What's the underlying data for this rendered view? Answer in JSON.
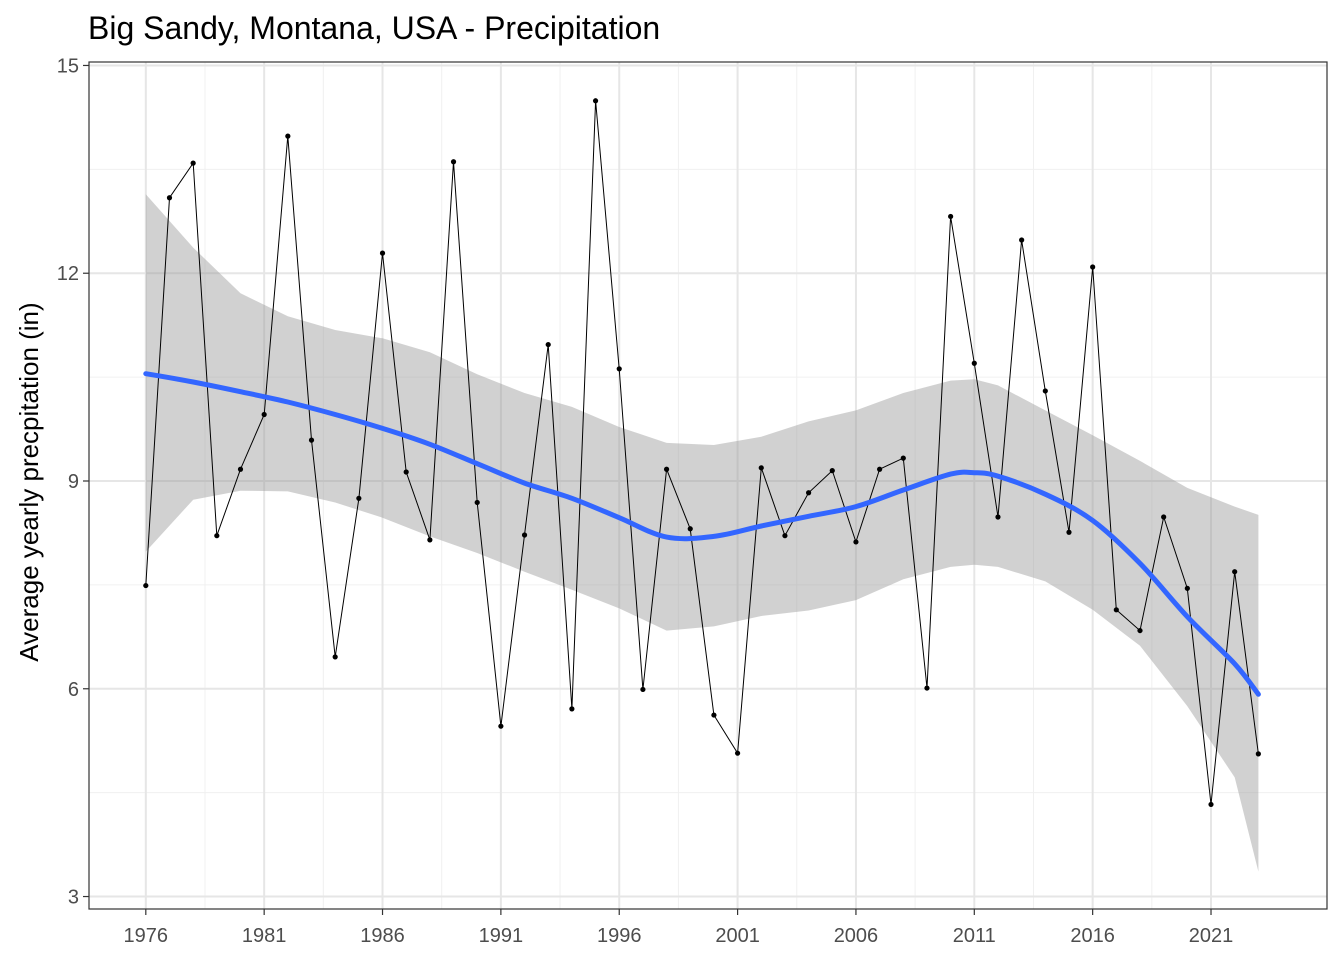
{
  "chart_data": {
    "type": "line",
    "title": "Big Sandy, Montana, USA - Precipitation",
    "xlabel": "",
    "ylabel": "Average yearly precpitation (in)",
    "xlim": [
      1973.6,
      2025.9
    ],
    "ylim": [
      2.82,
      15.05
    ],
    "x_ticks": [
      1976,
      1981,
      1986,
      1991,
      1996,
      2001,
      2006,
      2011,
      2016,
      2021
    ],
    "x_tick_labels": [
      "1976",
      "1981",
      "1986",
      "1991",
      "1996",
      "2001",
      "2006",
      "2011",
      "2016",
      "2021"
    ],
    "y_ticks": [
      3,
      6,
      9,
      12,
      15
    ],
    "y_tick_labels": [
      "3",
      "6",
      "9",
      "12",
      "15"
    ],
    "grid": true,
    "series": [
      {
        "type": "line+points",
        "color": "#000000",
        "x": [
          1976,
          1977,
          1978,
          1979,
          1980,
          1981,
          1982,
          1983,
          1984,
          1985,
          1986,
          1987,
          1988,
          1989,
          1990,
          1991,
          1992,
          1993,
          1994,
          1995,
          1996,
          1997,
          1998,
          1999,
          2000,
          2001,
          2002,
          2003,
          2004,
          2005,
          2006,
          2007,
          2008,
          2009,
          2010,
          2011,
          2012,
          2013,
          2014,
          2015,
          2016,
          2017,
          2018,
          2019,
          2020,
          2021,
          2022,
          2023
        ],
        "values": [
          7.49,
          13.09,
          13.59,
          8.21,
          9.17,
          9.96,
          13.98,
          9.59,
          6.46,
          8.75,
          12.29,
          9.13,
          8.15,
          13.61,
          8.69,
          5.46,
          8.22,
          10.97,
          5.71,
          14.49,
          10.62,
          5.99,
          9.17,
          8.31,
          5.62,
          5.07,
          9.19,
          8.21,
          8.83,
          9.15,
          8.12,
          9.17,
          9.33,
          6.01,
          12.82,
          10.7,
          8.48,
          12.48,
          10.3,
          8.26,
          12.09,
          7.14,
          6.84,
          8.48,
          7.45,
          4.33,
          7.69,
          5.06
        ]
      },
      {
        "type": "smooth",
        "color": "#3366FF",
        "x": [
          1976,
          1978,
          1980,
          1982,
          1984,
          1986,
          1988,
          1990,
          1992,
          1994,
          1996,
          1998,
          2000,
          2002,
          2004,
          2006,
          2008,
          2010,
          2011,
          2012,
          2014,
          2016,
          2018,
          2020,
          2022,
          2023
        ],
        "values": [
          10.55,
          10.43,
          10.29,
          10.14,
          9.96,
          9.76,
          9.53,
          9.25,
          8.97,
          8.75,
          8.47,
          8.19,
          8.2,
          8.35,
          8.49,
          8.63,
          8.87,
          9.1,
          9.12,
          9.07,
          8.81,
          8.43,
          7.81,
          7.04,
          6.36,
          5.92
        ],
        "ci_lower": [
          7.98,
          8.73,
          8.86,
          8.85,
          8.69,
          8.47,
          8.2,
          7.96,
          7.69,
          7.43,
          7.16,
          6.84,
          6.9,
          7.05,
          7.13,
          7.28,
          7.58,
          7.76,
          7.79,
          7.76,
          7.55,
          7.14,
          6.62,
          5.75,
          4.72,
          3.36
        ],
        "ci_upper": [
          13.14,
          12.37,
          11.71,
          11.38,
          11.18,
          11.06,
          10.86,
          10.54,
          10.27,
          10.07,
          9.78,
          9.55,
          9.52,
          9.64,
          9.86,
          10.02,
          10.27,
          10.45,
          10.47,
          10.38,
          10.02,
          9.66,
          9.29,
          8.9,
          8.63,
          8.51
        ]
      }
    ]
  }
}
